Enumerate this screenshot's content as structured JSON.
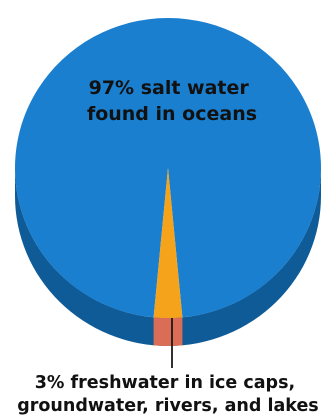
{
  "chart_data": {
    "type": "pie",
    "style": "3d",
    "slices": [
      {
        "label": "salt water found in oceans",
        "value": 97,
        "color": "#1b7fd0",
        "side_color": "#0f5b97"
      },
      {
        "label": "freshwater in ice caps, groundwater, rivers, and lakes",
        "value": 3,
        "color": "#f5a31a",
        "side_color": "#d96d55"
      }
    ],
    "labels": {
      "ocean": [
        "97% salt water",
        "found in oceans"
      ],
      "fresh": [
        "3% freshwater in ice caps,",
        "groundwater, rivers, and lakes"
      ]
    },
    "legend": "none"
  },
  "colors": {
    "background": "#ffffff",
    "pointer_line": "#1a1a1a",
    "text": "#111111"
  }
}
